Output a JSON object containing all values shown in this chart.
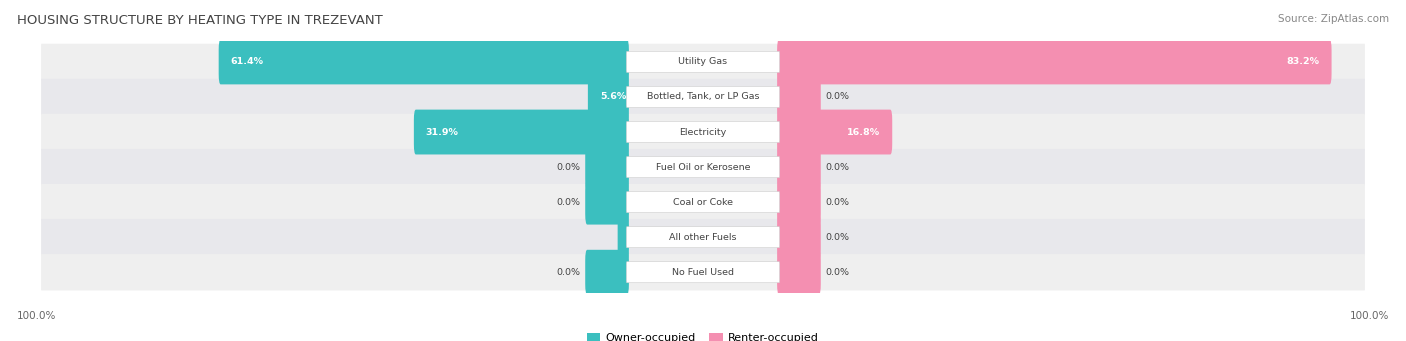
{
  "title": "HOUSING STRUCTURE BY HEATING TYPE IN TREZEVANT",
  "source": "Source: ZipAtlas.com",
  "categories": [
    "Utility Gas",
    "Bottled, Tank, or LP Gas",
    "Electricity",
    "Fuel Oil or Kerosene",
    "Coal or Coke",
    "All other Fuels",
    "No Fuel Used"
  ],
  "owner_values": [
    61.4,
    5.6,
    31.9,
    0.0,
    0.0,
    1.1,
    0.0
  ],
  "renter_values": [
    83.2,
    0.0,
    16.8,
    0.0,
    0.0,
    0.0,
    0.0
  ],
  "owner_color": "#3BBFBF",
  "renter_color": "#F48FB1",
  "row_bg_even": "#EFEFEF",
  "row_bg_odd": "#E8E8EC",
  "max_value": 100.0,
  "owner_label": "Owner-occupied",
  "renter_label": "Renter-occupied",
  "left_axis_label": "100.0%",
  "right_axis_label": "100.0%",
  "title_color": "#444444",
  "source_color": "#888888",
  "value_color": "#444444",
  "cat_label_color": "#444444",
  "center_label_bg": "#FFFFFF",
  "center_label_border": "#CCCCCC"
}
